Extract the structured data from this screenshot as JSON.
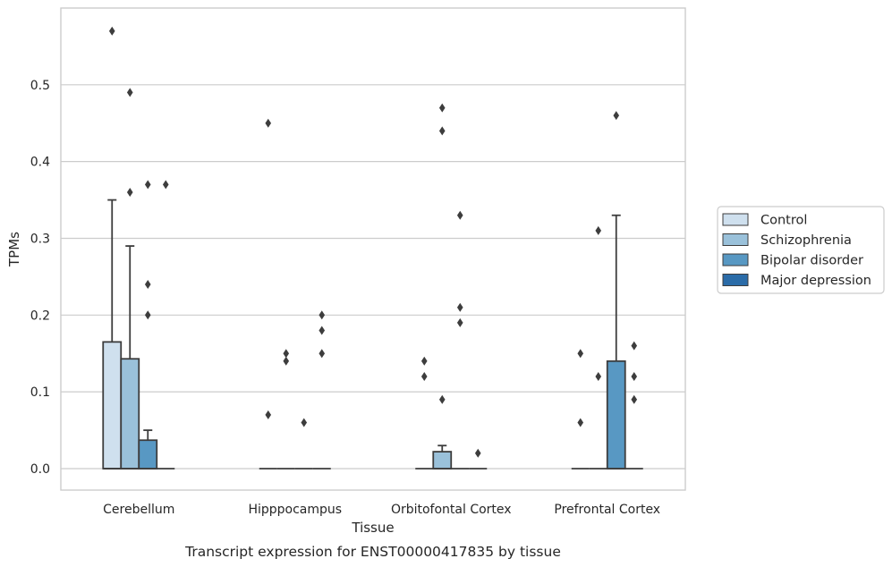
{
  "chart_data": {
    "type": "box",
    "caption": "Transcript expression for ENST00000417835 by tissue",
    "xlabel": "Tissue",
    "ylabel": "TPMs",
    "ylim": [
      -0.028,
      0.6
    ],
    "yticks": [
      0.0,
      0.1,
      0.2,
      0.3,
      0.4,
      0.5
    ],
    "ytick_labels": [
      "0.0",
      "0.1",
      "0.2",
      "0.3",
      "0.4",
      "0.5"
    ],
    "grid": "horizontal",
    "legend_position": "right",
    "categories": [
      "Cerebellum",
      "Hipppocampus",
      "Orbitofontal Cortex",
      "Prefrontal Cortex"
    ],
    "series": [
      {
        "name": "Control",
        "color": "#cfe0ee",
        "boxes": [
          {
            "q1": 0.0,
            "median": 0.0,
            "q3": 0.165,
            "whisker_low": 0.0,
            "whisker_high": 0.35,
            "outliers": [
              0.57
            ]
          },
          {
            "q1": 0.0,
            "median": 0.0,
            "q3": 0.0,
            "whisker_low": 0.0,
            "whisker_high": 0.0,
            "outliers": [
              0.45,
              0.07
            ]
          },
          {
            "q1": 0.0,
            "median": 0.0,
            "q3": 0.0,
            "whisker_low": 0.0,
            "whisker_high": 0.0,
            "outliers": [
              0.14,
              0.12
            ]
          },
          {
            "q1": 0.0,
            "median": 0.0,
            "q3": 0.0,
            "whisker_low": 0.0,
            "whisker_high": 0.0,
            "outliers": [
              0.15,
              0.06
            ]
          }
        ]
      },
      {
        "name": "Schizophrenia",
        "color": "#9ac1da",
        "boxes": [
          {
            "q1": 0.0,
            "median": 0.0,
            "q3": 0.143,
            "whisker_low": 0.0,
            "whisker_high": 0.29,
            "outliers": [
              0.49,
              0.36
            ]
          },
          {
            "q1": 0.0,
            "median": 0.0,
            "q3": 0.0,
            "whisker_low": 0.0,
            "whisker_high": 0.0,
            "outliers": [
              0.15,
              0.14
            ]
          },
          {
            "q1": 0.0,
            "median": 0.0,
            "q3": 0.022,
            "whisker_low": 0.0,
            "whisker_high": 0.03,
            "outliers": [
              0.47,
              0.44,
              0.09
            ]
          },
          {
            "q1": 0.0,
            "median": 0.0,
            "q3": 0.0,
            "whisker_low": 0.0,
            "whisker_high": 0.0,
            "outliers": [
              0.31,
              0.12
            ]
          }
        ]
      },
      {
        "name": "Bipolar disorder",
        "color": "#5898c3",
        "boxes": [
          {
            "q1": 0.0,
            "median": 0.0,
            "q3": 0.037,
            "whisker_low": 0.0,
            "whisker_high": 0.05,
            "outliers": [
              0.37,
              0.24,
              0.2
            ]
          },
          {
            "q1": 0.0,
            "median": 0.0,
            "q3": 0.0,
            "whisker_low": 0.0,
            "whisker_high": 0.0,
            "outliers": [
              0.06
            ]
          },
          {
            "q1": 0.0,
            "median": 0.0,
            "q3": 0.0,
            "whisker_low": 0.0,
            "whisker_high": 0.0,
            "outliers": [
              0.33,
              0.21,
              0.19
            ]
          },
          {
            "q1": 0.0,
            "median": 0.0,
            "q3": 0.14,
            "whisker_low": 0.0,
            "whisker_high": 0.33,
            "outliers": [
              0.46
            ]
          }
        ]
      },
      {
        "name": "Major depression",
        "color": "#2b6ca8",
        "boxes": [
          {
            "q1": 0.0,
            "median": 0.0,
            "q3": 0.0,
            "whisker_low": 0.0,
            "whisker_high": 0.0,
            "outliers": [
              0.37
            ]
          },
          {
            "q1": 0.0,
            "median": 0.0,
            "q3": 0.0,
            "whisker_low": 0.0,
            "whisker_high": 0.0,
            "outliers": [
              0.2,
              0.18,
              0.15
            ]
          },
          {
            "q1": 0.0,
            "median": 0.0,
            "q3": 0.0,
            "whisker_low": 0.0,
            "whisker_high": 0.0,
            "outliers": [
              0.02
            ]
          },
          {
            "q1": 0.0,
            "median": 0.0,
            "q3": 0.0,
            "whisker_low": 0.0,
            "whisker_high": 0.0,
            "outliers": [
              0.16,
              0.12,
              0.09
            ]
          }
        ]
      }
    ],
    "colors": {
      "grid": "#cccccc",
      "frame": "#cccccc",
      "box_edge": "#3d3d3d",
      "outlier": "#3d3d3d"
    }
  }
}
